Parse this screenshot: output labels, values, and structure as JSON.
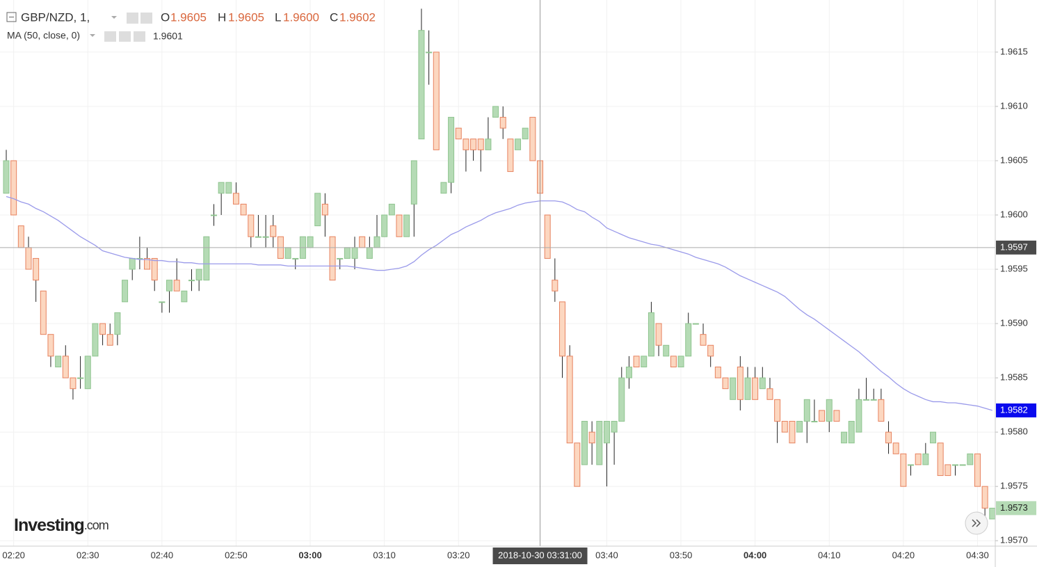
{
  "chart_data": {
    "type": "candlestick",
    "ylim": [
      1.95695,
      1.96198
    ],
    "yticks": [
      {
        "value": 1.957,
        "label": "1.9570"
      },
      {
        "value": 1.9575,
        "label": "1.9575"
      },
      {
        "value": 1.958,
        "label": "1.9580"
      },
      {
        "value": 1.9585,
        "label": "1.9585"
      },
      {
        "value": 1.959,
        "label": "1.9590"
      },
      {
        "value": 1.9595,
        "label": "1.9595"
      },
      {
        "value": 1.96,
        "label": "1.9600"
      },
      {
        "value": 1.9605,
        "label": "1.9605"
      },
      {
        "value": 1.961,
        "label": "1.9610"
      },
      {
        "value": 1.9615,
        "label": "1.9615"
      }
    ],
    "grid": true,
    "categories": [
      null,
      "02:20",
      null,
      null,
      null,
      null,
      null,
      null,
      null,
      null,
      null,
      "02:30",
      null,
      null,
      null,
      null,
      null,
      null,
      null,
      null,
      null,
      "02:40",
      null,
      null,
      null,
      null,
      null,
      null,
      null,
      null,
      null,
      "02:50",
      null,
      null,
      null,
      null,
      null,
      null,
      null,
      null,
      null,
      "03:00",
      null,
      null,
      null,
      null,
      null,
      null,
      null,
      null,
      null,
      "03:10",
      null,
      null,
      null,
      null,
      null,
      null,
      null,
      null,
      null,
      "03:20",
      null,
      null,
      null,
      null,
      null,
      null,
      null,
      null,
      null,
      null,
      null,
      null,
      null,
      null,
      null,
      null,
      null,
      null,
      null,
      "03:40",
      null,
      null,
      null,
      null,
      null,
      null,
      null,
      null,
      null,
      "03:50",
      null,
      null,
      null,
      null,
      null,
      null,
      null,
      null,
      null,
      "04:00",
      null,
      null,
      null,
      null,
      null,
      null,
      null,
      null,
      null,
      "04:10",
      null,
      null,
      null,
      null,
      null,
      null,
      null,
      null,
      null,
      "04:20",
      null,
      null,
      null,
      null,
      null,
      null,
      null,
      null,
      null,
      "04:30",
      null,
      null
    ],
    "ohlc_legend": {
      "labels": [
        "O",
        "H",
        "L",
        "C"
      ],
      "values": [
        1.9605,
        1.9605,
        {
          "value": 1.96,
          "label": "1.9600"
        },
        1.9602
      ]
    },
    "crosshair": {
      "x_label": "2018-10-30 03:31:00",
      "y": 1.9597,
      "color": "#4a4a4a"
    },
    "watermark": [
      "Investing",
      ".com"
    ],
    "series": [
      {
        "name": "GBP/NZD, 1,",
        "up_color": "#b5dbb5",
        "up_border": "#8fc48f",
        "down_color": "#fcd7c0",
        "down_border": "#e7825f",
        "wick_color": "#222",
        "last_badge": 1.9573,
        "open": [
          1.9602,
          1.9605,
          1.9599,
          1.9597,
          1.9596,
          1.9593,
          1.9589,
          1.9586,
          1.9587,
          1.9585,
          1.9585,
          1.9584,
          1.9587,
          1.959,
          1.9589,
          1.9589,
          1.9592,
          1.9595,
          1.9596,
          1.9596,
          1.9596,
          1.9592,
          1.9593,
          1.9594,
          1.9592,
          1.9594,
          1.9594,
          1.9594,
          1.96,
          1.9602,
          1.9602,
          1.9602,
          1.9601,
          1.96,
          1.9598,
          1.9598,
          1.9599,
          1.9598,
          1.9596,
          1.9596,
          1.9596,
          1.9597,
          1.9599,
          1.9601,
          1.9598,
          1.9596,
          1.9596,
          1.9596,
          1.9598,
          1.9596,
          1.9597,
          1.9598,
          1.96,
          1.96,
          1.9598,
          1.9601,
          1.9607,
          1.9615,
          1.9615,
          1.9602,
          1.9603,
          1.9608,
          1.9607,
          1.9607,
          1.9607,
          1.9606,
          1.9609,
          1.9609,
          1.9607,
          1.9606,
          1.9607,
          1.9609,
          1.9605,
          1.96,
          1.9594,
          1.9592,
          1.9587,
          1.9579,
          1.9577,
          1.958,
          1.9577,
          1.9579,
          1.958,
          1.9581,
          1.9585,
          1.9587,
          1.9586,
          1.9587,
          1.959,
          1.9587,
          1.9587,
          1.9586,
          1.9587,
          1.959,
          1.9589,
          1.9588,
          1.9586,
          1.9585,
          1.9583,
          1.9586,
          1.9583,
          1.9585,
          1.9584,
          1.9584,
          1.9583,
          1.9581,
          1.9581,
          1.958,
          1.9581,
          1.9581,
          1.9582,
          1.9581,
          1.9582,
          1.9579,
          1.9579,
          1.958,
          1.9583,
          1.9583,
          1.9583,
          1.958,
          1.9579,
          1.9578,
          1.9577,
          1.9578,
          1.9577,
          1.9579,
          1.9579,
          1.9577,
          1.9577,
          1.9577,
          1.9577,
          1.9578,
          1.9575,
          1.9572
        ],
        "high": [
          1.9606,
          1.9605,
          1.9599,
          1.9598,
          1.9596,
          1.9593,
          1.9589,
          1.9587,
          1.9588,
          1.9585,
          1.9587,
          1.9587,
          1.959,
          1.959,
          1.959,
          1.9591,
          1.9594,
          1.9596,
          1.9598,
          1.9597,
          1.9596,
          1.9592,
          1.9594,
          1.9596,
          1.9593,
          1.9595,
          1.9595,
          1.9598,
          1.9601,
          1.9603,
          1.9603,
          1.9603,
          1.9601,
          1.96,
          1.96,
          1.96,
          1.96,
          1.9598,
          1.9597,
          1.9596,
          1.9598,
          1.9598,
          1.9602,
          1.9602,
          1.9598,
          1.9596,
          1.9597,
          1.9598,
          1.9598,
          1.9598,
          1.96,
          1.96,
          1.9601,
          1.96,
          1.96,
          1.9605,
          1.9619,
          1.9617,
          1.9615,
          1.9603,
          1.9609,
          1.9608,
          1.9607,
          1.9607,
          1.9607,
          1.9609,
          1.961,
          1.961,
          1.9607,
          1.9607,
          1.9608,
          1.9609,
          1.9605,
          1.96,
          1.9596,
          1.9592,
          1.9588,
          1.9579,
          1.9581,
          1.9581,
          1.9581,
          1.9581,
          1.9581,
          1.9586,
          1.9587,
          1.9587,
          1.9587,
          1.9592,
          1.959,
          1.9588,
          1.9587,
          1.9587,
          1.9591,
          1.959,
          1.959,
          1.9588,
          1.9586,
          1.9585,
          1.9585,
          1.9587,
          1.9586,
          1.9586,
          1.9586,
          1.9585,
          1.9583,
          1.9581,
          1.9581,
          1.9581,
          1.9583,
          1.9583,
          1.9582,
          1.9583,
          1.9582,
          1.958,
          1.9581,
          1.9584,
          1.9585,
          1.9584,
          1.9584,
          1.9581,
          1.9579,
          1.9578,
          1.9577,
          1.9578,
          1.9579,
          1.958,
          1.9579,
          1.9577,
          1.9577,
          1.9577,
          1.9578,
          1.9578,
          1.9575,
          1.9573
        ],
        "low": [
          1.9602,
          1.96,
          1.9597,
          1.9595,
          1.9592,
          1.9589,
          1.9586,
          1.9586,
          1.9585,
          1.9583,
          1.9584,
          1.9584,
          1.9587,
          1.9588,
          1.9588,
          1.9588,
          1.9592,
          1.9594,
          1.9595,
          1.9595,
          1.9593,
          1.9591,
          1.9591,
          1.9593,
          1.9592,
          1.9593,
          1.9593,
          1.9594,
          1.9599,
          1.96,
          1.9602,
          1.9601,
          1.96,
          1.9597,
          1.9598,
          1.9597,
          1.9597,
          1.9596,
          1.9596,
          1.9595,
          1.9596,
          1.9597,
          1.9599,
          1.9598,
          1.9594,
          1.9595,
          1.9596,
          1.9595,
          1.9597,
          1.9596,
          1.9597,
          1.9598,
          1.96,
          1.9598,
          1.9598,
          1.9598,
          1.9607,
          1.9612,
          1.9606,
          1.9602,
          1.9602,
          1.9607,
          1.9604,
          1.9605,
          1.9604,
          1.9606,
          1.9609,
          1.9607,
          1.9604,
          1.9606,
          1.9607,
          1.9605,
          1.96,
          1.9596,
          1.9592,
          1.9585,
          1.9579,
          1.9575,
          1.9577,
          1.9577,
          1.9577,
          1.9575,
          1.9577,
          1.9581,
          1.9584,
          1.9586,
          1.9586,
          1.9587,
          1.9587,
          1.9587,
          1.9586,
          1.9586,
          1.9587,
          1.959,
          1.9588,
          1.9586,
          1.9585,
          1.9584,
          1.9583,
          1.9582,
          1.9583,
          1.9583,
          1.9584,
          1.9583,
          1.9579,
          1.958,
          1.9579,
          1.958,
          1.9579,
          1.9581,
          1.9581,
          1.958,
          1.9581,
          1.9579,
          1.9579,
          1.958,
          1.9583,
          1.9583,
          1.9581,
          1.9578,
          1.9578,
          1.9575,
          1.9576,
          1.9577,
          1.9577,
          1.9579,
          1.9576,
          1.9576,
          1.9576,
          1.9577,
          1.9577,
          1.9575,
          1.9571,
          1.9572
        ],
        "close": [
          1.9605,
          1.96,
          1.9597,
          1.9595,
          1.9594,
          1.9589,
          1.9587,
          1.9587,
          1.9585,
          1.9584,
          1.9585,
          1.9587,
          1.959,
          1.9589,
          1.9588,
          1.9591,
          1.9594,
          1.9596,
          1.9596,
          1.9595,
          1.9594,
          1.9592,
          1.9594,
          1.9593,
          1.9593,
          1.9594,
          1.9595,
          1.9598,
          1.96,
          1.9603,
          1.9603,
          1.9601,
          1.96,
          1.9598,
          1.9598,
          1.9598,
          1.9598,
          1.9596,
          1.9597,
          1.9596,
          1.9598,
          1.9598,
          1.9602,
          1.96,
          1.9594,
          1.9596,
          1.9597,
          1.9597,
          1.9597,
          1.9597,
          1.9598,
          1.96,
          1.9601,
          1.9598,
          1.96,
          1.9605,
          1.9617,
          1.9615,
          1.9606,
          1.9603,
          1.9609,
          1.9607,
          1.9606,
          1.9606,
          1.9606,
          1.9607,
          1.961,
          1.9608,
          1.9604,
          1.9607,
          1.9608,
          1.9605,
          1.9602,
          1.9596,
          1.9593,
          1.9587,
          1.9579,
          1.9575,
          1.9581,
          1.9579,
          1.9581,
          1.9581,
          1.9581,
          1.9585,
          1.9586,
          1.9586,
          1.9587,
          1.9591,
          1.9588,
          1.9588,
          1.9586,
          1.9587,
          1.959,
          1.959,
          1.9588,
          1.9587,
          1.9585,
          1.9584,
          1.9585,
          1.9583,
          1.9585,
          1.9583,
          1.9585,
          1.9583,
          1.9581,
          1.958,
          1.9579,
          1.9581,
          1.9583,
          1.9581,
          1.9581,
          1.9583,
          1.9581,
          1.958,
          1.9581,
          1.9583,
          1.9583,
          1.9583,
          1.9581,
          1.9579,
          1.9578,
          1.9575,
          1.9577,
          1.9577,
          1.9578,
          1.958,
          1.9576,
          1.9576,
          1.9577,
          1.9577,
          1.9578,
          1.9575,
          1.9573,
          1.9573
        ]
      },
      {
        "name": "MA (50, close, 0)",
        "type": "line",
        "color": "#9a9aea",
        "legend_value": 1.9601,
        "value_color": "#2b2bb8",
        "badge_color": "#0a0aee",
        "last_badge": 1.9582,
        "values": [
          1.96017,
          1.96015,
          1.96012,
          1.9601,
          1.96006,
          1.96003,
          1.95999,
          1.95995,
          1.9599,
          1.95985,
          1.9598,
          1.95976,
          1.95972,
          1.95967,
          1.95965,
          1.95963,
          1.95961,
          1.9596,
          1.95959,
          1.95959,
          1.95958,
          1.95958,
          1.95957,
          1.95957,
          1.95956,
          1.95956,
          1.95955,
          1.95955,
          1.95955,
          1.95955,
          1.95955,
          1.95955,
          1.95955,
          1.95955,
          1.95954,
          1.95954,
          1.95954,
          1.95954,
          1.95953,
          1.95953,
          1.95953,
          1.95953,
          1.95953,
          1.95953,
          1.95953,
          1.95953,
          1.95953,
          1.95952,
          1.95951,
          1.9595,
          1.95949,
          1.95949,
          1.9595,
          1.95951,
          1.95953,
          1.95957,
          1.95963,
          1.95968,
          1.95972,
          1.95977,
          1.95982,
          1.95985,
          1.95989,
          1.95992,
          1.95995,
          1.95999,
          1.96002,
          1.96004,
          1.96006,
          1.96009,
          1.96011,
          1.96012,
          1.96013,
          1.96013,
          1.96013,
          1.96012,
          1.96009,
          1.96005,
          1.96003,
          1.95998,
          1.95994,
          1.95988,
          1.95985,
          1.95982,
          1.95979,
          1.95977,
          1.95975,
          1.95973,
          1.95972,
          1.9597,
          1.95968,
          1.95966,
          1.95964,
          1.95961,
          1.95959,
          1.95957,
          1.95955,
          1.95952,
          1.95948,
          1.95944,
          1.95941,
          1.95938,
          1.95935,
          1.95932,
          1.95929,
          1.95925,
          1.95919,
          1.95913,
          1.95908,
          1.95904,
          1.95899,
          1.95894,
          1.95889,
          1.95884,
          1.95879,
          1.95874,
          1.95868,
          1.95862,
          1.95856,
          1.95851,
          1.95845,
          1.9584,
          1.95836,
          1.95833,
          1.9583,
          1.95828,
          1.95828,
          1.95827,
          1.95827,
          1.95826,
          1.95825,
          1.95824,
          1.95822,
          1.9582
        ]
      }
    ]
  }
}
